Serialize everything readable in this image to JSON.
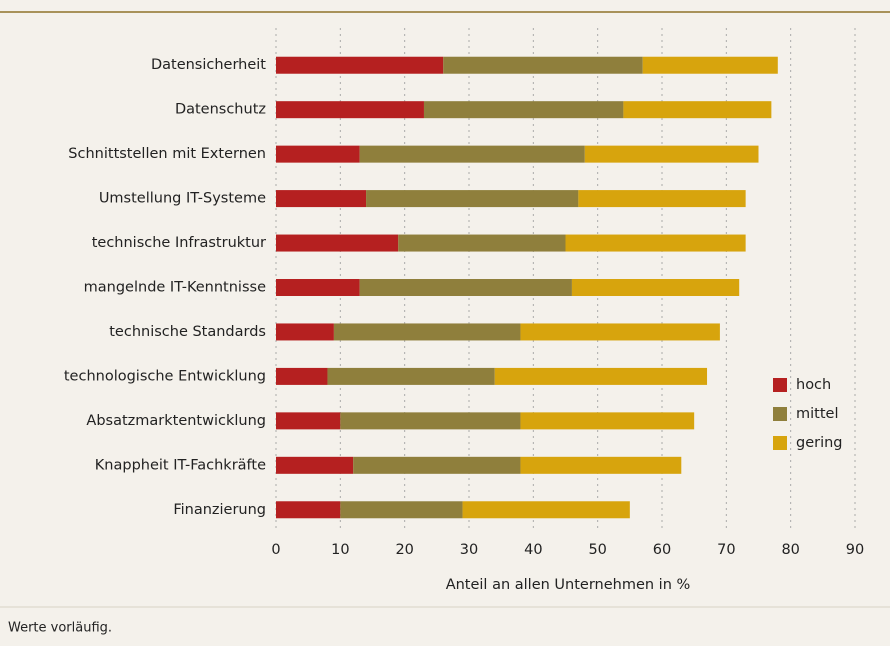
{
  "chart_data": {
    "type": "stacked_barh",
    "categories": [
      "Datensicherheit",
      "Datenschutz",
      "Schnittstellen mit Externen",
      "Umstellung IT-Systeme",
      "technische Infrastruktur",
      "mangelnde IT-Kenntnisse",
      "technische Standards",
      "technologische Entwicklung",
      "Absatzmarktentwicklung",
      "Knappheit IT-Fachkräfte",
      "Finanzierung"
    ],
    "series": [
      {
        "name": "hoch",
        "color": "#b52020",
        "values": [
          26,
          23,
          13,
          14,
          19,
          13,
          9,
          8,
          10,
          12,
          10
        ]
      },
      {
        "name": "mittel",
        "color": "#8f7f3c",
        "values": [
          31,
          31,
          35,
          33,
          26,
          33,
          29,
          26,
          28,
          26,
          19
        ]
      },
      {
        "name": "gering",
        "color": "#d7a40d",
        "values": [
          21,
          23,
          27,
          26,
          28,
          26,
          31,
          33,
          27,
          25,
          26
        ]
      }
    ],
    "xlabel": "Anteil an allen Unternehmen in %",
    "xlim": [
      0,
      90
    ],
    "xticks": [
      0,
      10,
      20,
      30,
      40,
      50,
      60,
      70,
      80,
      90
    ],
    "grid": true,
    "footnote": "Werte vorläufig."
  }
}
